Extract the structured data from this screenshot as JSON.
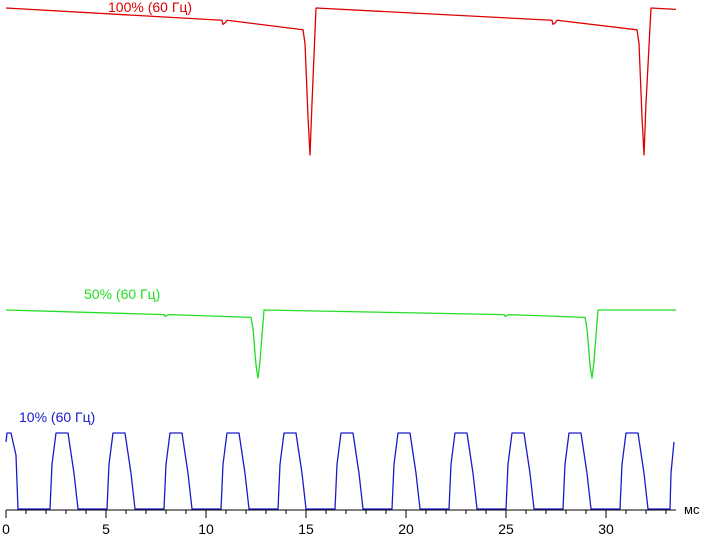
{
  "chart_data": {
    "type": "line",
    "title": "",
    "xlabel": "мс",
    "ylabel": "",
    "xlim": [
      0,
      33.5
    ],
    "x_ticks": [
      "0",
      "5",
      "10",
      "15",
      "20",
      "25",
      "30"
    ],
    "grid": false,
    "legend": "inline labels above each trace",
    "series": [
      {
        "name": "100% (60 Гц)",
        "color": "#dd0000",
        "x": [
          0,
          10.8,
          10.85,
          10.95,
          11.05,
          14.85,
          14.95,
          15.1,
          15.2,
          15.3,
          15.5,
          27.3,
          27.35,
          27.45,
          27.55,
          31.55,
          31.65,
          31.8,
          31.9,
          32.0,
          32.25,
          33.5
        ],
        "y": [
          100,
          91,
          88,
          89,
          91,
          84,
          74,
          20,
          -8,
          30,
          100,
          91,
          88,
          89,
          91,
          84,
          74,
          20,
          -8,
          30,
          100,
          99
        ]
      },
      {
        "name": "50% (60 Гц)",
        "color": "#22dd22",
        "x": [
          0,
          7.9,
          7.95,
          8.05,
          8.15,
          12.25,
          12.35,
          12.5,
          12.6,
          12.7,
          12.9,
          24.9,
          24.95,
          25.05,
          25.15,
          28.95,
          29.05,
          29.2,
          29.3,
          29.4,
          29.6,
          33.5
        ],
        "y": [
          50,
          47.5,
          46.5,
          47,
          47.5,
          46,
          40,
          20,
          13,
          22,
          50,
          47.5,
          46.5,
          47,
          47.5,
          46,
          40,
          20,
          13,
          22,
          50,
          50
        ]
      },
      {
        "name": "10% (60 Гц)",
        "color": "#1a1acc",
        "period": 2.85,
        "first_peak_start": 2.45,
        "x": [
          0,
          0.05,
          0.25,
          0.5,
          0.6,
          2.2,
          2.3,
          2.5,
          3.1,
          3.4,
          3.6
        ],
        "y": [
          7.5,
          8.5,
          8.5,
          6,
          0,
          0,
          5,
          8.5,
          8.5,
          4,
          0
        ]
      }
    ]
  }
}
